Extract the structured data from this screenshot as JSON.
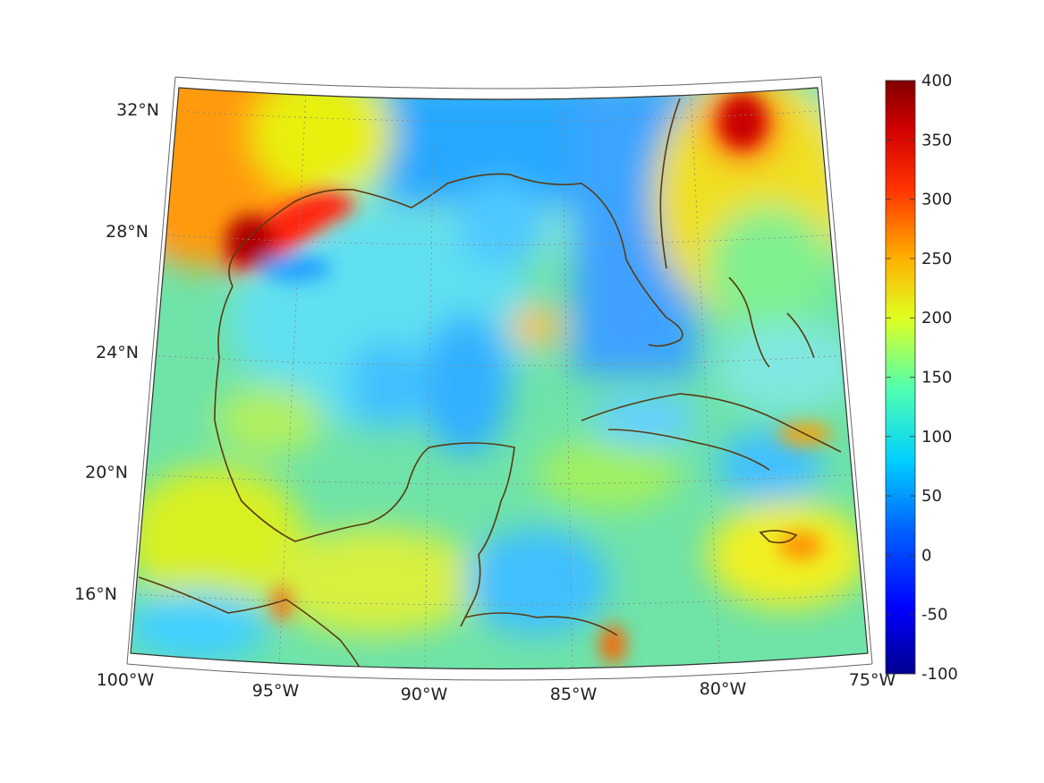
{
  "map": {
    "latitude_labels": [
      "32°N",
      "28°N",
      "24°N",
      "20°N",
      "16°N"
    ],
    "longitude_labels": [
      "100°W",
      "95°W",
      "90°W",
      "85°W",
      "80°W",
      "75°W"
    ],
    "coastline_color": "#5a3a10",
    "grid_color": "#888888"
  },
  "colorbar": {
    "tick_labels": [
      "400",
      "350",
      "300",
      "250",
      "200",
      "150",
      "100",
      "50",
      "0",
      "-50",
      "-100"
    ],
    "range": [
      -100,
      400
    ],
    "colormap": [
      "#00008f",
      "#0000ff",
      "#0080ff",
      "#00ffff",
      "#80ff80",
      "#ffff00",
      "#ff8000",
      "#ff0000",
      "#800000"
    ]
  }
}
